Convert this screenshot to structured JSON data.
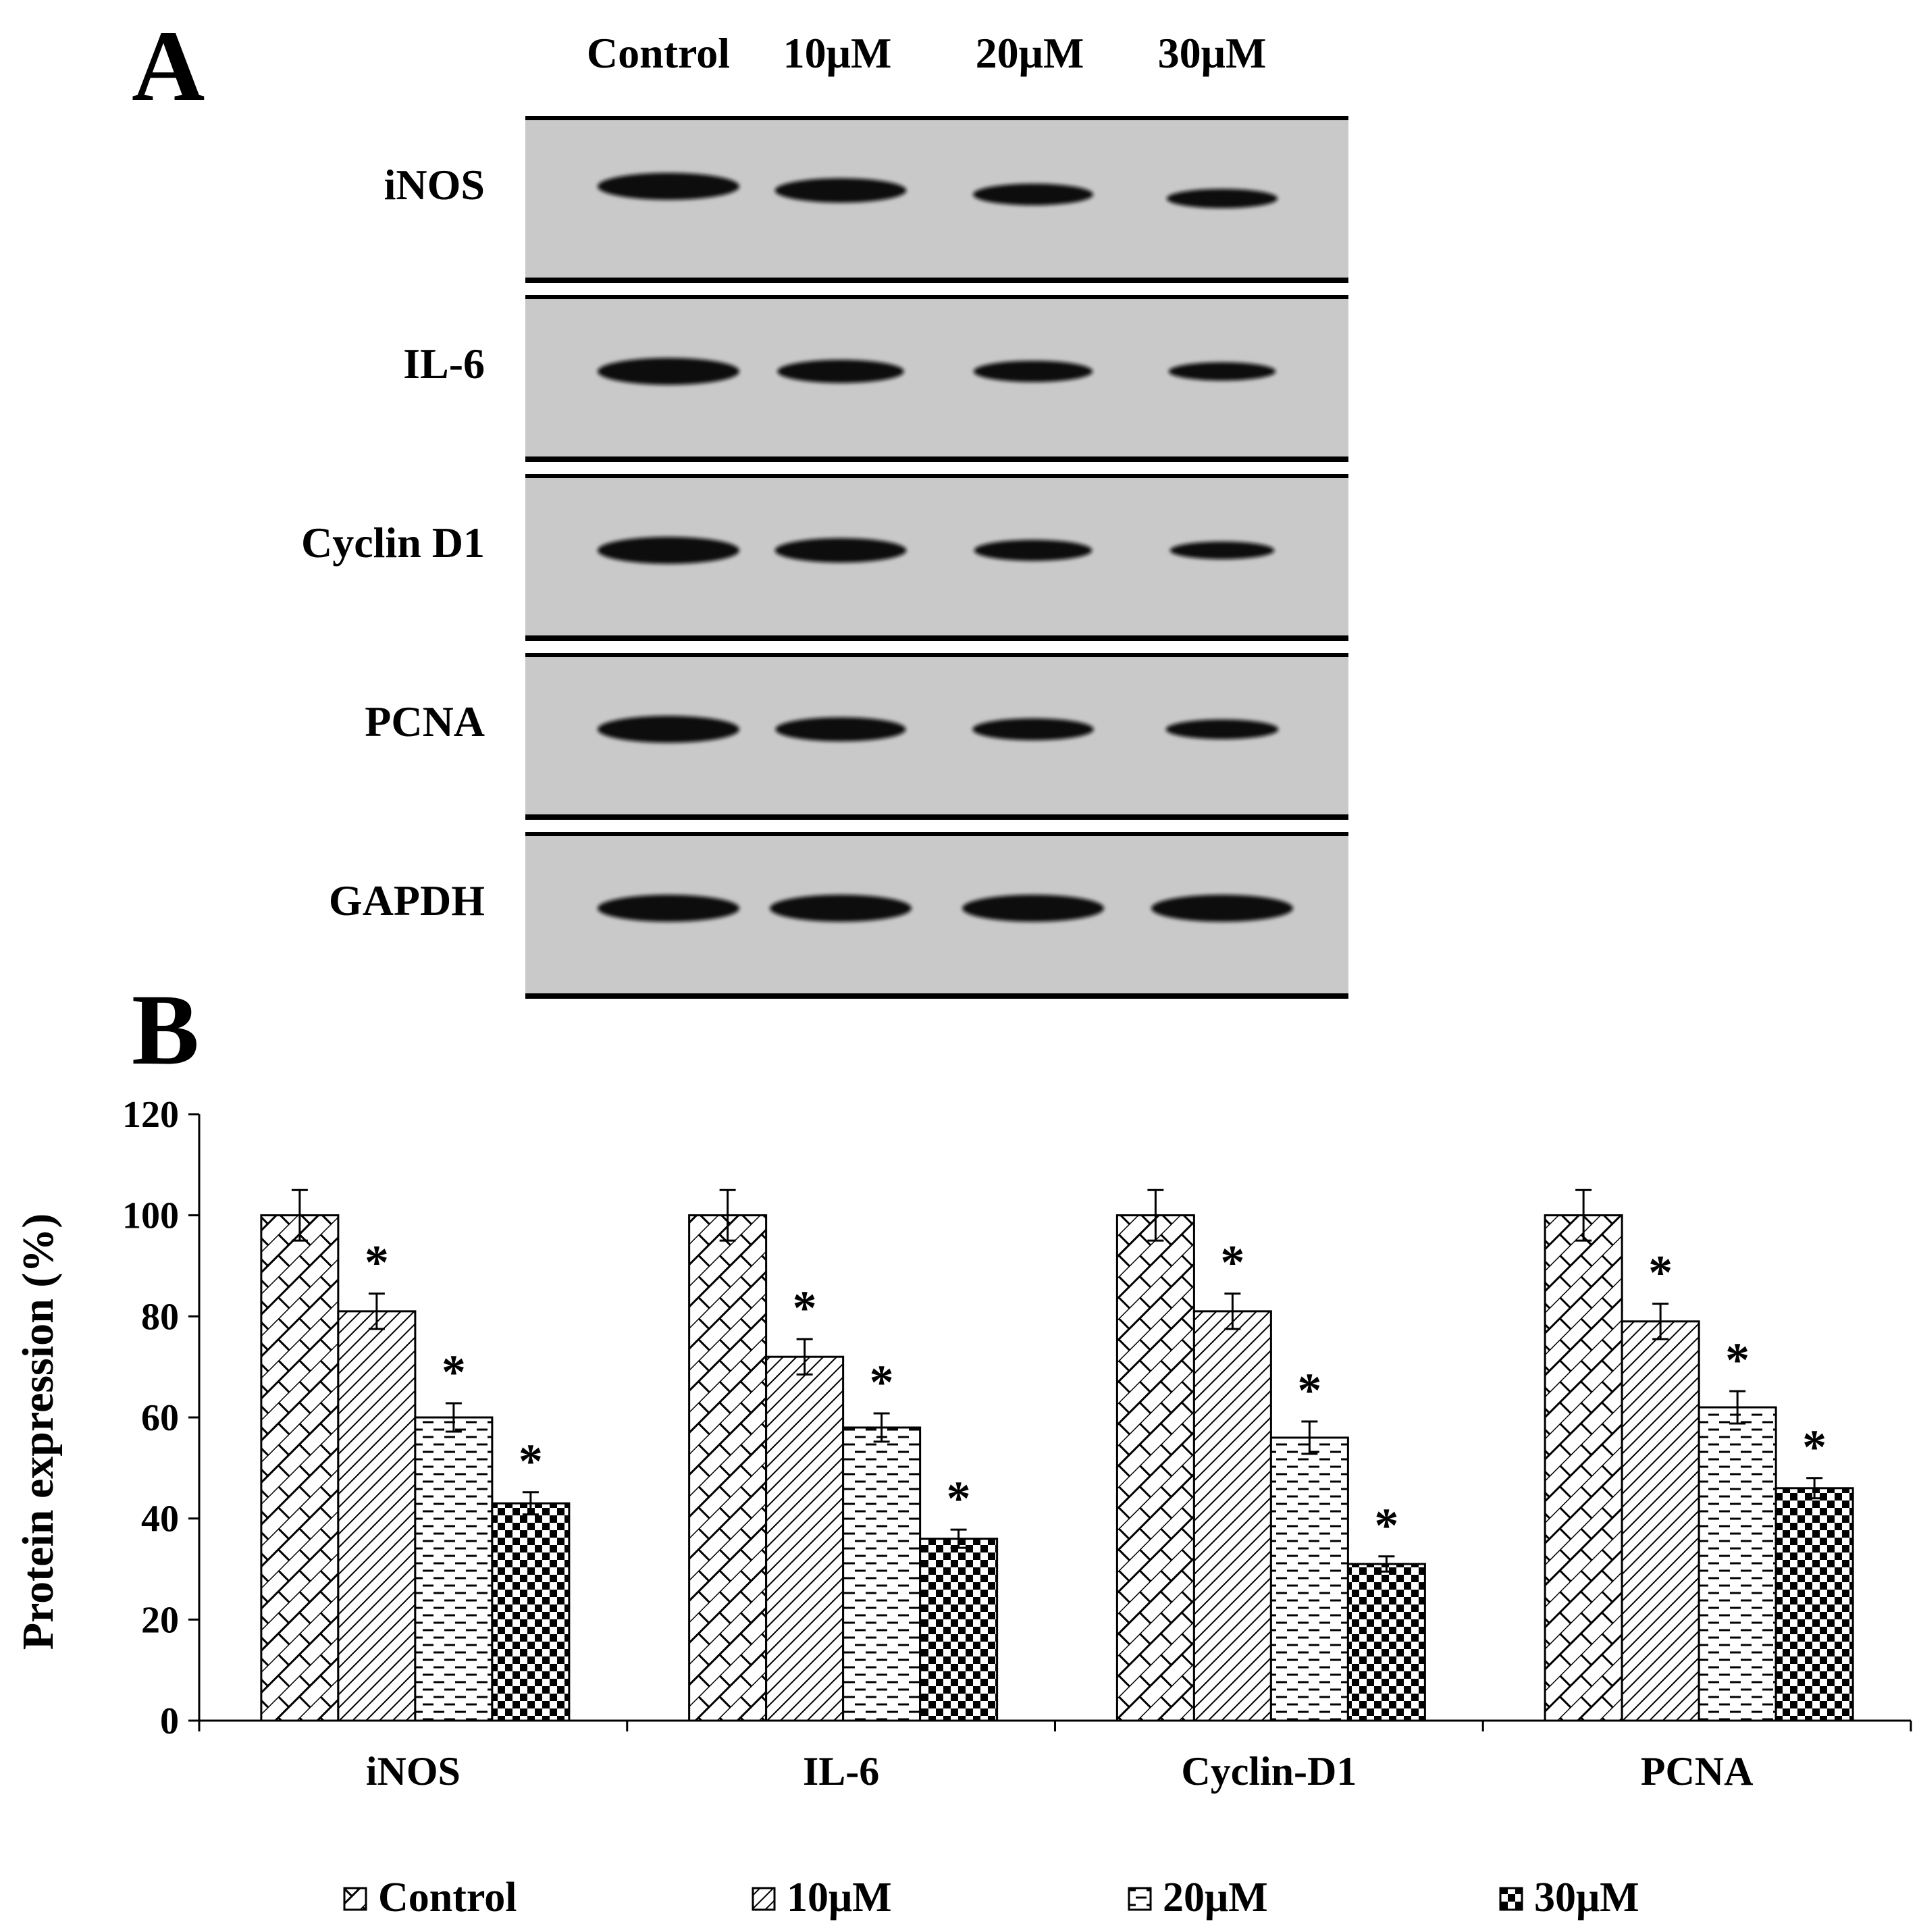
{
  "panel_a": {
    "letter": "A",
    "lanes": [
      "Control",
      "10μM",
      "20μM",
      "30μM"
    ],
    "rows": [
      {
        "label": "iNOS",
        "bands": [
          1.0,
          0.81,
          0.6,
          0.43
        ]
      },
      {
        "label": "IL-6",
        "bands": [
          1.0,
          0.72,
          0.58,
          0.36
        ]
      },
      {
        "label": "Cyclin D1",
        "bands": [
          1.0,
          0.81,
          0.56,
          0.31
        ]
      },
      {
        "label": "PCNA",
        "bands": [
          1.0,
          0.79,
          0.62,
          0.46
        ]
      },
      {
        "label": "GAPDH",
        "bands": [
          1.0,
          1.0,
          1.0,
          1.0
        ]
      }
    ]
  },
  "panel_b": {
    "letter": "B"
  },
  "chart_data": {
    "type": "bar",
    "categories": [
      "iNOS",
      "IL-6",
      "Cyclin-D1",
      "PCNA"
    ],
    "series": [
      {
        "name": "Control",
        "values": [
          100,
          100,
          100,
          100
        ],
        "errors": [
          5,
          5,
          5,
          5
        ],
        "pattern": "brick-diagonal"
      },
      {
        "name": "10μM",
        "values": [
          81,
          72,
          81,
          79
        ],
        "errors": [
          3.5,
          3.5,
          3.5,
          3.5
        ],
        "pattern": "diagonal-hatch"
      },
      {
        "name": "20μM",
        "values": [
          60,
          58,
          56,
          62
        ],
        "errors": [
          2.8,
          2.8,
          3.2,
          3.2
        ],
        "pattern": "dashed-horizontal"
      },
      {
        "name": "30μM",
        "values": [
          43,
          36,
          31,
          46
        ],
        "errors": [
          2.2,
          1.8,
          1.5,
          2.0
        ],
        "pattern": "checkerboard"
      }
    ],
    "significance": [
      [
        false,
        true,
        true,
        true
      ],
      [
        false,
        true,
        true,
        true
      ],
      [
        false,
        true,
        true,
        true
      ],
      [
        false,
        true,
        true,
        true
      ]
    ],
    "significance_marker": "*",
    "xlabel": "",
    "ylabel": "Protein expression (%)",
    "ylim": [
      0,
      120
    ],
    "yticks": [
      0,
      20,
      40,
      60,
      80,
      100,
      120
    ],
    "grid": false,
    "legend_position": "bottom"
  }
}
